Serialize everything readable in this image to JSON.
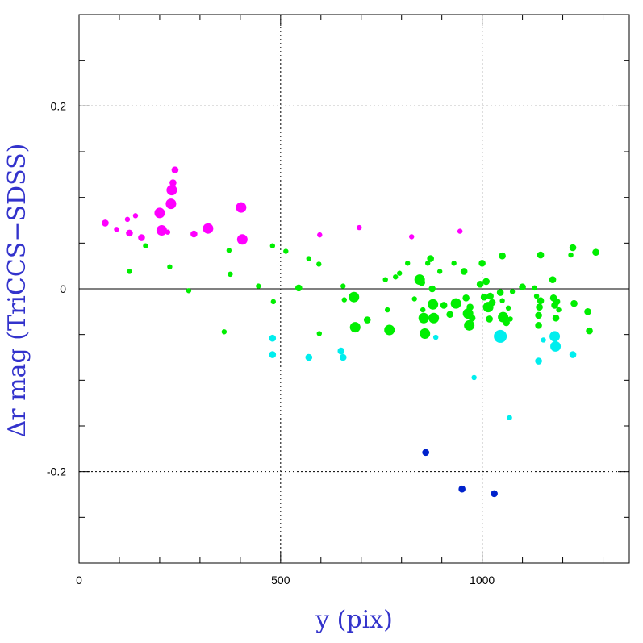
{
  "chart_data": {
    "type": "scatter",
    "xlabel": "y (pix)",
    "ylabel": "Δr mag (TriCCS−SDSS)",
    "xlim": [
      0,
      1365
    ],
    "ylim": [
      -0.3,
      0.3
    ],
    "x_ticks": [
      0,
      500,
      1000
    ],
    "x_tick_labels": [
      "0",
      "500",
      "1000"
    ],
    "y_ticks": [
      -0.2,
      0,
      0.2
    ],
    "y_tick_labels": [
      "-0.2",
      "0",
      "0.2"
    ],
    "grid": true,
    "zero_line": true,
    "colors": {
      "magenta": "#ff00ff",
      "green": "#00ee00",
      "cyan": "#00eeee",
      "blue": "#0022cc",
      "axis_title": "#3333cc"
    },
    "series": [
      {
        "color": "magenta",
        "points": [
          [
            65,
            0.072,
            2
          ],
          [
            93,
            0.065,
            1
          ],
          [
            120,
            0.076,
            1
          ],
          [
            125,
            0.061,
            2
          ],
          [
            140,
            0.08,
            1
          ],
          [
            155,
            0.056,
            2
          ],
          [
            200,
            0.083,
            3
          ],
          [
            205,
            0.064,
            3
          ],
          [
            220,
            0.062,
            1
          ],
          [
            228,
            0.093,
            3
          ],
          [
            230,
            0.108,
            3
          ],
          [
            233,
            0.116,
            2
          ],
          [
            238,
            0.13,
            2
          ],
          [
            285,
            0.06,
            2
          ],
          [
            320,
            0.066,
            3
          ],
          [
            402,
            0.089,
            3
          ],
          [
            405,
            0.054,
            3
          ],
          [
            597,
            0.059,
            1
          ],
          [
            695,
            0.067,
            1
          ],
          [
            825,
            0.057,
            1
          ],
          [
            945,
            0.063,
            1
          ]
        ]
      },
      {
        "color": "green",
        "points": [
          [
            125,
            0.019,
            1
          ],
          [
            165,
            0.047,
            1
          ],
          [
            225,
            0.024,
            1
          ],
          [
            272,
            -0.002,
            1
          ],
          [
            360,
            -0.047,
            1
          ],
          [
            372,
            0.042,
            1
          ],
          [
            375,
            0.016,
            1
          ],
          [
            445,
            0.003,
            1
          ],
          [
            480,
            0.047,
            1
          ],
          [
            482,
            -0.014,
            1
          ],
          [
            513,
            0.041,
            1
          ],
          [
            545,
            0.001,
            2
          ],
          [
            570,
            0.033,
            1
          ],
          [
            595,
            0.027,
            1
          ],
          [
            596,
            -0.049,
            1
          ],
          [
            655,
            0.003,
            1
          ],
          [
            658,
            -0.012,
            1
          ],
          [
            682,
            -0.009,
            3
          ],
          [
            685,
            -0.042,
            3
          ],
          [
            715,
            -0.034,
            2
          ],
          [
            760,
            0.01,
            1
          ],
          [
            765,
            -0.023,
            1
          ],
          [
            770,
            -0.045,
            3
          ],
          [
            785,
            0.013,
            1
          ],
          [
            795,
            0.017,
            1
          ],
          [
            815,
            0.028,
            1
          ],
          [
            832,
            -0.011,
            1
          ],
          [
            845,
            0.01,
            3
          ],
          [
            850,
            0.007,
            2
          ],
          [
            853,
            -0.023,
            1
          ],
          [
            855,
            -0.032,
            3
          ],
          [
            858,
            -0.049,
            3
          ],
          [
            865,
            0.028,
            1
          ],
          [
            872,
            0.033,
            2
          ],
          [
            876,
            0.0,
            2
          ],
          [
            878,
            -0.017,
            3
          ],
          [
            880,
            -0.032,
            3
          ],
          [
            895,
            0.019,
            1
          ],
          [
            905,
            -0.018,
            2
          ],
          [
            920,
            -0.028,
            2
          ],
          [
            930,
            0.028,
            1
          ],
          [
            935,
            -0.016,
            3
          ],
          [
            955,
            0.019,
            2
          ],
          [
            960,
            -0.01,
            2
          ],
          [
            965,
            -0.027,
            3
          ],
          [
            968,
            -0.04,
            3
          ],
          [
            970,
            -0.02,
            2
          ],
          [
            975,
            -0.032,
            2
          ],
          [
            995,
            0.005,
            2
          ],
          [
            1000,
            0.028,
            2
          ],
          [
            1005,
            -0.009,
            2
          ],
          [
            1010,
            0.008,
            2
          ],
          [
            1015,
            -0.02,
            3
          ],
          [
            1018,
            -0.033,
            2
          ],
          [
            1020,
            -0.008,
            2
          ],
          [
            1025,
            -0.015,
            2
          ],
          [
            1045,
            -0.004,
            2
          ],
          [
            1050,
            -0.013,
            1
          ],
          [
            1050,
            0.036,
            2
          ],
          [
            1052,
            -0.031,
            3
          ],
          [
            1060,
            -0.037,
            2
          ],
          [
            1065,
            -0.021,
            1
          ],
          [
            1070,
            -0.033,
            1
          ],
          [
            1075,
            -0.003,
            1
          ],
          [
            1100,
            0.002,
            2
          ],
          [
            1130,
            0.001,
            1
          ],
          [
            1135,
            -0.008,
            1
          ],
          [
            1140,
            -0.04,
            2
          ],
          [
            1140,
            -0.029,
            2
          ],
          [
            1142,
            -0.02,
            2
          ],
          [
            1145,
            -0.013,
            2
          ],
          [
            1145,
            0.037,
            2
          ],
          [
            1175,
            0.01,
            2
          ],
          [
            1177,
            -0.01,
            2
          ],
          [
            1180,
            -0.018,
            2
          ],
          [
            1183,
            -0.032,
            2
          ],
          [
            1185,
            -0.014,
            2
          ],
          [
            1190,
            -0.023,
            1
          ],
          [
            1220,
            0.037,
            1
          ],
          [
            1225,
            0.045,
            2
          ],
          [
            1228,
            -0.016,
            2
          ],
          [
            1262,
            -0.025,
            2
          ],
          [
            1266,
            -0.046,
            2
          ],
          [
            1282,
            0.04,
            2
          ]
        ]
      },
      {
        "color": "cyan",
        "points": [
          [
            480,
            -0.054,
            2
          ],
          [
            480,
            -0.072,
            2
          ],
          [
            570,
            -0.075,
            2
          ],
          [
            650,
            -0.068,
            2
          ],
          [
            655,
            -0.075,
            2
          ],
          [
            885,
            -0.053,
            1
          ],
          [
            980,
            -0.097,
            1
          ],
          [
            1045,
            -0.052,
            4
          ],
          [
            1068,
            -0.141,
            1
          ],
          [
            1140,
            -0.079,
            2
          ],
          [
            1152,
            -0.056,
            1
          ],
          [
            1180,
            -0.052,
            3
          ],
          [
            1182,
            -0.063,
            3
          ],
          [
            1225,
            -0.072,
            2
          ]
        ]
      },
      {
        "color": "blue",
        "points": [
          [
            860,
            -0.179,
            2
          ],
          [
            950,
            -0.219,
            2
          ],
          [
            1030,
            -0.224,
            2
          ]
        ]
      }
    ]
  }
}
